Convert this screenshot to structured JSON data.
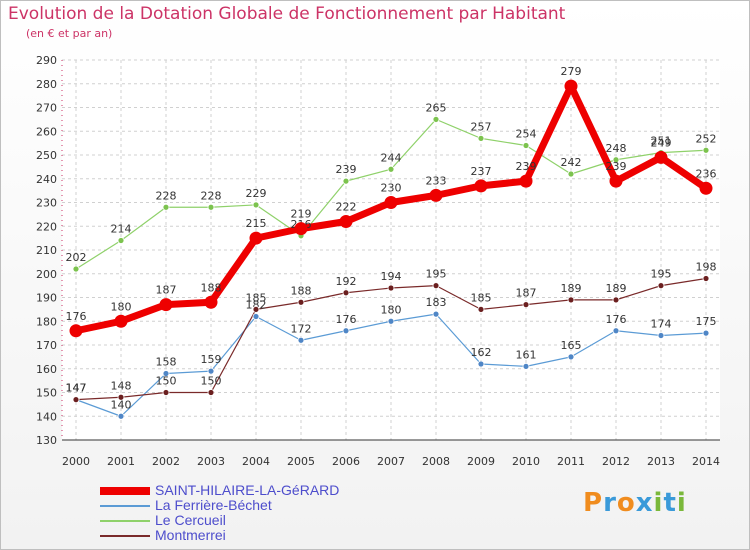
{
  "title": "Evolution de la Dotation Globale de Fonctionnement par Habitant",
  "subtitle": "(en € et par an)",
  "brand": {
    "text": "Proxiti",
    "colors": [
      "#f08c1e",
      "#3a9ad9",
      "#f08c1e",
      "#3a9ad9",
      "#7ab83a",
      "#3a9ad9",
      "#7ab83a"
    ]
  },
  "chart_data": {
    "type": "line",
    "x": [
      "2000",
      "2001",
      "2002",
      "2003",
      "2004",
      "2005",
      "2006",
      "2007",
      "2008",
      "2009",
      "2010",
      "2011",
      "2012",
      "2013",
      "2014"
    ],
    "ylim": [
      130,
      290
    ],
    "yticks": [
      130,
      140,
      150,
      160,
      170,
      180,
      190,
      200,
      210,
      220,
      230,
      240,
      250,
      260,
      270,
      280,
      290
    ],
    "grid": true,
    "legend_position": "bottom-left",
    "series": [
      {
        "name": "La Ferrière-Béchet",
        "color": "#5b9bd5",
        "marker": "#4f86c6",
        "width": 1.2,
        "values": [
          147,
          140,
          158,
          159,
          182,
          172,
          176,
          180,
          183,
          162,
          161,
          165,
          176,
          174,
          175
        ]
      },
      {
        "name": "Le Cercueil",
        "color": "#8fd16a",
        "marker": "#7cc34e",
        "width": 1.2,
        "values": [
          202,
          214,
          228,
          228,
          229,
          216,
          239,
          244,
          265,
          257,
          254,
          242,
          248,
          251,
          252
        ]
      },
      {
        "name": "Montmerrei",
        "color": "#7a2a2a",
        "marker": "#6b1f1f",
        "width": 1.2,
        "values": [
          147,
          148,
          150,
          150,
          185,
          188,
          192,
          194,
          195,
          185,
          187,
          189,
          189,
          195,
          198
        ]
      },
      {
        "name": "SAINT-HILAIRE-LA-GéRARD",
        "color": "#ee0000",
        "marker": "#ee0000",
        "width": 7,
        "values": [
          176,
          180,
          187,
          188,
          215,
          219,
          222,
          230,
          233,
          237,
          239,
          279,
          239,
          249,
          236
        ]
      }
    ]
  }
}
